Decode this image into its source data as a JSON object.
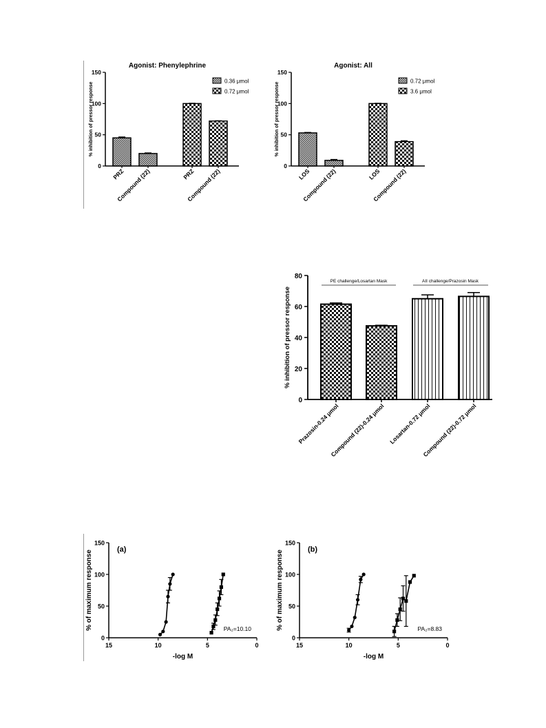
{
  "chart_data": [
    {
      "type": "bar",
      "title": "Agonist: Phenylephrine",
      "ylabel": "% inhibition of pressor response",
      "xlabel": "",
      "ylim": [
        0,
        150
      ],
      "yticks": [
        "0",
        "50",
        "100",
        "150"
      ],
      "categories": [
        "PRZ",
        "Compound (22)",
        "PRZ",
        "Compound (22)"
      ],
      "values": [
        45,
        20,
        100,
        72
      ],
      "errors": [
        1.5,
        1,
        0.5,
        0.5
      ],
      "bar_series": [
        0,
        0,
        1,
        1
      ],
      "legend": [
        "0.36 μmol",
        "0.72 μmol"
      ],
      "legend_position": "top-right",
      "grid": false
    },
    {
      "type": "bar",
      "title": "Agonist: All",
      "ylabel": "% inhibition of pressor response",
      "xlabel": "",
      "ylim": [
        0,
        150
      ],
      "yticks": [
        "0",
        "50",
        "100",
        "150"
      ],
      "categories": [
        "LOS",
        "Compound (22)",
        "LOS",
        "Compound (22)"
      ],
      "values": [
        53,
        9,
        100,
        39
      ],
      "errors": [
        0.8,
        1.5,
        0.5,
        1.5
      ],
      "bar_series": [
        0,
        0,
        1,
        1
      ],
      "legend": [
        "0.72 μmol",
        "3.6 μmol"
      ],
      "legend_position": "top-right",
      "grid": false
    },
    {
      "type": "bar",
      "title": "",
      "ylabel": "% inhibition of pressor response",
      "xlabel": "",
      "ylim": [
        0,
        80
      ],
      "yticks": [
        "0",
        "20",
        "40",
        "60",
        "80"
      ],
      "categories": [
        "Prazosin-0.24 μmol",
        "Compound (22)-0.24 μmol",
        "Losartan-0.72 μmol",
        "Compound (22)-0.72 μmol"
      ],
      "values": [
        61.5,
        47.5,
        65,
        66.5
      ],
      "errors": [
        0.8,
        0.4,
        2.5,
        2.5
      ],
      "bar_patterns": [
        "check",
        "check",
        "stripes",
        "stripes"
      ],
      "annotations": [
        "PE challenge/Losartan Mask",
        "AII challenge/Prazosin Mask"
      ],
      "grid": false
    },
    {
      "type": "scatter",
      "panel_label": "(a)",
      "title": "",
      "xlabel": "-log M",
      "ylabel": "% of maximum response",
      "xlim": [
        15,
        0
      ],
      "ylim": [
        0,
        150
      ],
      "xticks": [
        "15",
        "10",
        "5",
        "0"
      ],
      "yticks": [
        "0",
        "50",
        "100",
        "150"
      ],
      "annotation": "PA₂=10.10",
      "series": [
        {
          "marker": "circle",
          "x": [
            9.8,
            9.5,
            9.2,
            9.0,
            8.8,
            8.5
          ],
          "y": [
            5,
            10,
            25,
            65,
            85,
            100
          ],
          "err": [
            0,
            0,
            0,
            10,
            10,
            0
          ]
        },
        {
          "marker": "square",
          "x": [
            4.6,
            4.4,
            4.2,
            4.0,
            3.8,
            3.6,
            3.4
          ],
          "y": [
            8,
            18,
            28,
            45,
            62,
            80,
            100
          ],
          "err": [
            0,
            5,
            8,
            10,
            12,
            12,
            0
          ]
        }
      ],
      "grid": false
    },
    {
      "type": "scatter",
      "panel_label": "(b)",
      "title": "",
      "xlabel": "-log M",
      "ylabel": "% of maximum response",
      "xlim": [
        15,
        0
      ],
      "ylim": [
        0,
        150
      ],
      "xticks": [
        "15",
        "10",
        "5",
        "0"
      ],
      "yticks": [
        "0",
        "50",
        "100",
        "150"
      ],
      "annotation": "PA₂=8.83",
      "series": [
        {
          "marker": "circle",
          "x": [
            10.0,
            9.7,
            9.4,
            9.1,
            8.8,
            8.5
          ],
          "y": [
            12,
            18,
            32,
            60,
            92,
            100
          ],
          "err": [
            3,
            0,
            0,
            8,
            5,
            0
          ]
        },
        {
          "marker": "square",
          "x": [
            5.4,
            5.1,
            4.8,
            4.5,
            4.2,
            3.8,
            3.4
          ],
          "y": [
            10,
            28,
            45,
            62,
            58,
            88,
            98
          ],
          "err": [
            8,
            10,
            18,
            20,
            40,
            0,
            0
          ]
        }
      ],
      "grid": false
    }
  ]
}
